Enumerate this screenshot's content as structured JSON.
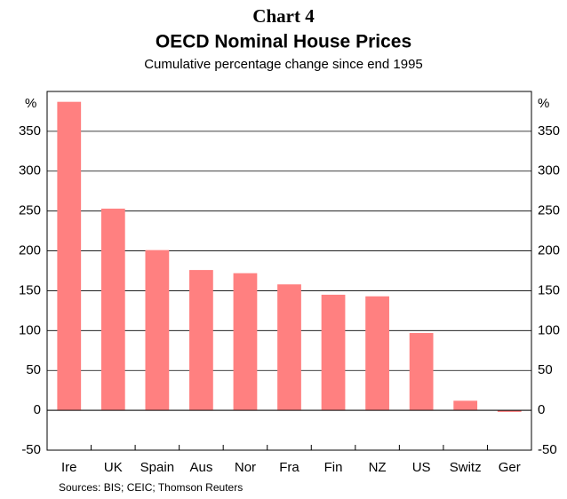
{
  "chart_data": {
    "type": "bar",
    "chart_number": "Chart 4",
    "title": "OECD Nominal House Prices",
    "subtitle": "Cumulative percentage change since end 1995",
    "y_unit": "%",
    "source": "Sources: BIS; CEIC; Thomson Reuters",
    "categories": [
      "Ire",
      "UK",
      "Spain",
      "Aus",
      "Nor",
      "Fra",
      "Fin",
      "NZ",
      "US",
      "Switz",
      "Ger"
    ],
    "values": [
      387,
      253,
      201,
      176,
      172,
      158,
      145,
      143,
      97,
      12,
      -2
    ],
    "color": "#ff8080",
    "ylim": [
      -50,
      400
    ],
    "yticks": [
      -50,
      0,
      50,
      100,
      150,
      200,
      250,
      300,
      350
    ],
    "grid": true
  }
}
